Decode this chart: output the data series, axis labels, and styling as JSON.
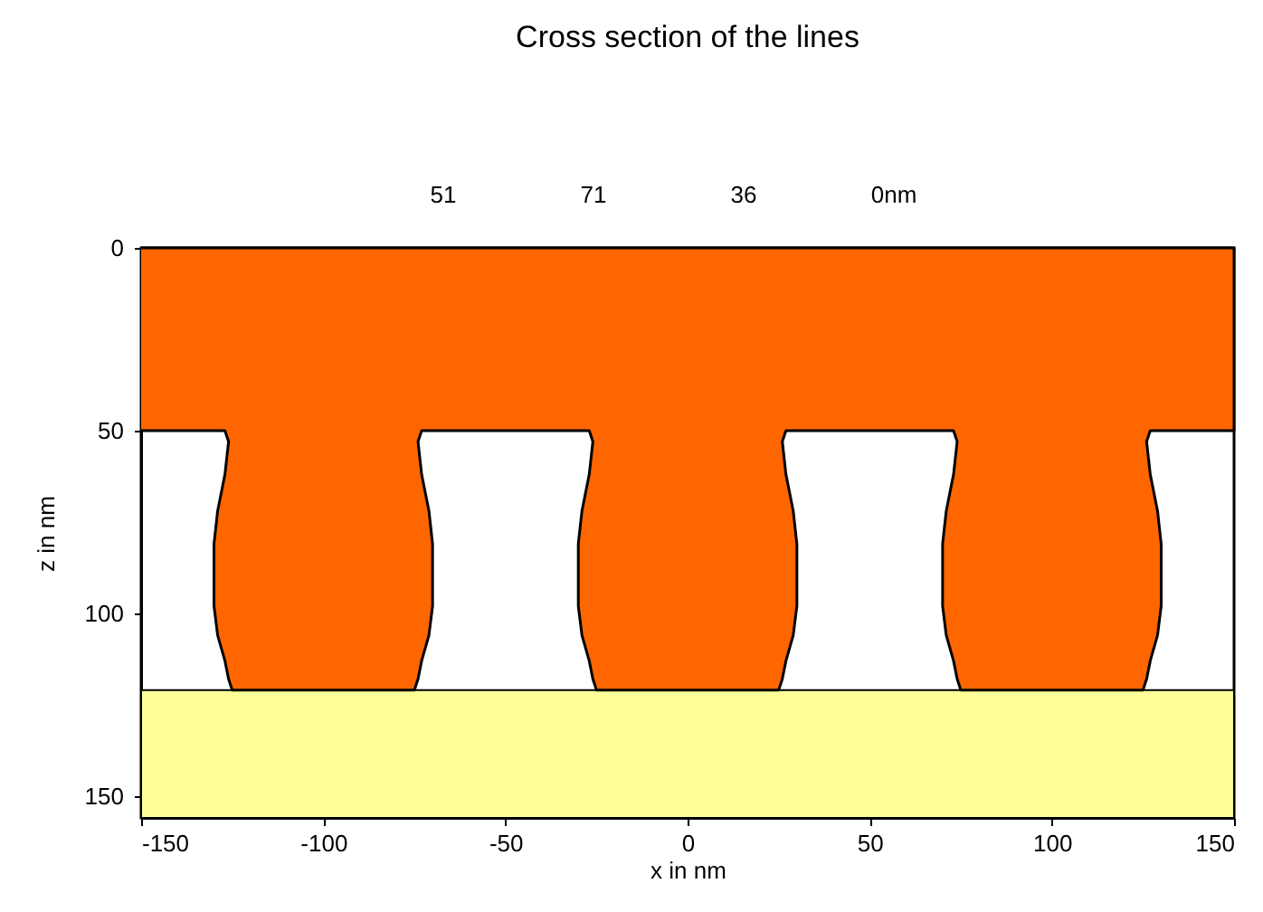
{
  "chart_data": {
    "type": "area",
    "title": "Cross section of the lines",
    "xlabel": "x in nm",
    "ylabel": "z in nm",
    "annotations": [
      "51",
      "71",
      "36",
      "0nm"
    ],
    "x": [
      -150,
      -127,
      -126,
      -127,
      -129,
      -130,
      -130,
      -129,
      -127,
      -126,
      -125,
      -75,
      -74,
      -73,
      -71,
      -70,
      -70,
      -71,
      -73,
      -74,
      -73,
      -27,
      -26,
      -27,
      -29,
      -30,
      -30,
      -29,
      -27,
      -26,
      -25,
      25,
      26,
      27,
      29,
      30,
      30,
      29,
      27,
      26,
      27,
      73,
      74,
      73,
      71,
      70,
      70,
      71,
      73,
      74,
      75,
      125,
      126,
      127,
      129,
      130,
      130,
      129,
      127,
      126,
      127,
      150
    ],
    "series": [
      {
        "color": "#ff6600",
        "values": [
          50,
          50,
          53,
          62,
          72,
          81,
          98,
          106,
          113,
          118,
          121,
          121,
          118,
          113,
          106,
          98,
          81,
          72,
          62,
          53,
          50,
          50,
          53,
          62,
          72,
          81,
          98,
          106,
          113,
          118,
          121,
          121,
          118,
          113,
          106,
          98,
          81,
          72,
          62,
          53,
          50,
          50,
          53,
          62,
          72,
          81,
          98,
          106,
          113,
          118,
          121,
          121,
          118,
          113,
          106,
          98,
          81,
          72,
          62,
          53,
          50,
          50
        ]
      }
    ],
    "bands": [
      {
        "axis": "y",
        "from": 121,
        "to": 156,
        "color": "#ffff99"
      }
    ],
    "xlim": [
      -150,
      150
    ],
    "ylim": [
      156,
      0
    ],
    "xticks": [
      -150,
      -100,
      -50,
      0,
      50,
      100,
      150
    ],
    "yticks": [
      0,
      50,
      100,
      150
    ],
    "grid": false
  }
}
